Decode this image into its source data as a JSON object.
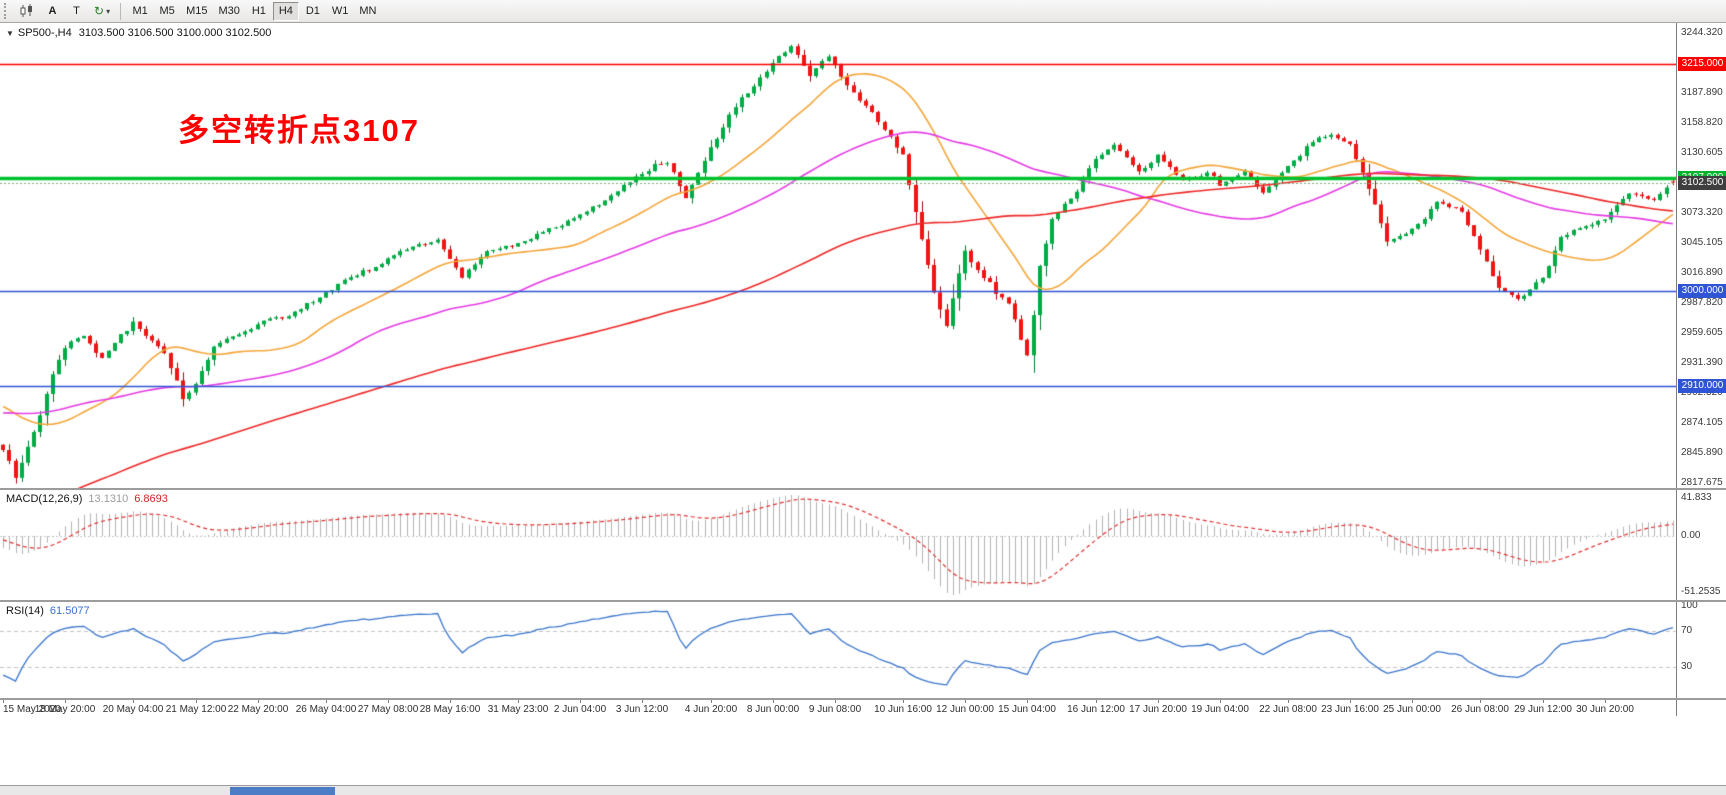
{
  "icons": {
    "refresh": "↻",
    "caret": "▾",
    "title_marker": "▼"
  },
  "toolbar": {
    "tool_a": "A",
    "tool_t": "T",
    "timeframes": [
      "M1",
      "M5",
      "M15",
      "M30",
      "H1",
      "H4",
      "D1",
      "W1",
      "MN"
    ],
    "active_timeframe": "H4"
  },
  "chart": {
    "title": {
      "symbol_period": "SP500-,H4",
      "quote": "3103.500 3106.500 3100.000 3102.500"
    },
    "annotation": {
      "text": "多空转折点3107",
      "color": "#ff0000"
    },
    "hlines": [
      {
        "price": 3215.0,
        "label": "3215.000",
        "color": "#ff0000",
        "badge_bg": "#ff0000",
        "width": 1.6,
        "style": "solid"
      },
      {
        "price": 3107.0,
        "label": "3107.000",
        "color": "#00c22e",
        "badge_bg": "#00b42c",
        "width": 3.4,
        "style": "solid"
      },
      {
        "price": 3102.5,
        "label": "3102.500",
        "color": "#7fae7f",
        "badge_bg": "#3f3f3f",
        "width": 1,
        "style": "dashed"
      },
      {
        "price": 3000.0,
        "label": "3000.000",
        "color": "#2f55d4",
        "badge_bg": "#2f55d4",
        "width": 1.6,
        "style": "solid"
      },
      {
        "price": 2910.0,
        "label": "2910.000",
        "color": "#2f55d4",
        "badge_bg": "#2f55d4",
        "width": 1.6,
        "style": "solid"
      }
    ],
    "y_ticks": [
      "3244.320",
      "3216.105",
      "3187.890",
      "3158.820",
      "3130.605",
      "3102.390",
      "3073.320",
      "3045.105",
      "3016.890",
      "2987.820",
      "2959.605",
      "2931.390",
      "2902.320",
      "2874.105",
      "2845.890",
      "2817.675"
    ],
    "x_labels": [
      {
        "t": "15 May 2020",
        "i": 0
      },
      {
        "t": "18 May 20:00",
        "i": 10
      },
      {
        "t": "20 May 04:00",
        "i": 21
      },
      {
        "t": "21 May 12:00",
        "i": 31
      },
      {
        "t": "22 May 20:00",
        "i": 41
      },
      {
        "t": "26 May 04:00",
        "i": 52
      },
      {
        "t": "27 May 08:00",
        "i": 62
      },
      {
        "t": "28 May 16:00",
        "i": 72
      },
      {
        "t": "31 May 23:00",
        "i": 83
      },
      {
        "t": "2 Jun 04:00",
        "i": 93
      },
      {
        "t": "3 Jun 12:00",
        "i": 103
      },
      {
        "t": "4 Jun 20:00",
        "i": 114
      },
      {
        "t": "8 Jun 00:00",
        "i": 124
      },
      {
        "t": "9 Jun 08:00",
        "i": 134
      },
      {
        "t": "10 Jun 16:00",
        "i": 145
      },
      {
        "t": "12 Jun 00:00",
        "i": 155
      },
      {
        "t": "15 Jun 04:00",
        "i": 165
      },
      {
        "t": "16 Jun 12:00",
        "i": 176
      },
      {
        "t": "17 Jun 20:00",
        "i": 186
      },
      {
        "t": "19 Jun 04:00",
        "i": 196
      },
      {
        "t": "22 Jun 08:00",
        "i": 207
      },
      {
        "t": "23 Jun 16:00",
        "i": 217
      },
      {
        "t": "25 Jun 00:00",
        "i": 227
      },
      {
        "t": "26 Jun 08:00",
        "i": 238
      },
      {
        "t": "29 Jun 12:00",
        "i": 248
      },
      {
        "t": "30 Jun 20:00",
        "i": 258
      }
    ]
  },
  "macd": {
    "header": "MACD(12,26,9)",
    "value_main": "13.1310",
    "value_signal": "6.8693",
    "ticks": [
      "41.833",
      "0.00",
      "-51.2535"
    ]
  },
  "rsi": {
    "header": "RSI(14)",
    "value": "61.5077",
    "ticks": [
      "100",
      "70",
      "30"
    ]
  },
  "chart_data": {
    "type": "candlestick",
    "symbol": "SP500-",
    "timeframe": "H4",
    "bars_total": 270,
    "axis": {
      "top": 3244.32,
      "bottom": 2817.675
    },
    "last_ohlc": {
      "open": 3103.5,
      "high": 3106.5,
      "low": 3100.0,
      "close": 3102.5
    },
    "history_anchors": [
      [
        0,
        2540
      ],
      [
        40,
        2650
      ],
      [
        80,
        2790
      ],
      [
        110,
        2885
      ],
      [
        138,
        2912
      ],
      [
        149,
        2850
      ]
    ],
    "close_anchors": [
      [
        0,
        2848
      ],
      [
        2,
        2823
      ],
      [
        5,
        2865
      ],
      [
        8,
        2920
      ],
      [
        10,
        2945
      ],
      [
        13,
        2958
      ],
      [
        16,
        2935
      ],
      [
        21,
        2970
      ],
      [
        26,
        2942
      ],
      [
        29,
        2898
      ],
      [
        31,
        2912
      ],
      [
        34,
        2948
      ],
      [
        38,
        2958
      ],
      [
        42,
        2972
      ],
      [
        46,
        2975
      ],
      [
        52,
        2998
      ],
      [
        56,
        3012
      ],
      [
        62,
        3030
      ],
      [
        66,
        3042
      ],
      [
        70,
        3048
      ],
      [
        74,
        3012
      ],
      [
        78,
        3036
      ],
      [
        83,
        3044
      ],
      [
        88,
        3058
      ],
      [
        93,
        3072
      ],
      [
        97,
        3086
      ],
      [
        103,
        3112
      ],
      [
        107,
        3122
      ],
      [
        110,
        3088
      ],
      [
        114,
        3135
      ],
      [
        118,
        3175
      ],
      [
        121,
        3194
      ],
      [
        124,
        3215
      ],
      [
        127,
        3232
      ],
      [
        130,
        3205
      ],
      [
        133,
        3222
      ],
      [
        136,
        3195
      ],
      [
        140,
        3168
      ],
      [
        145,
        3128
      ],
      [
        148,
        3048
      ],
      [
        150,
        2998
      ],
      [
        152,
        2968
      ],
      [
        155,
        3038
      ],
      [
        158,
        3012
      ],
      [
        162,
        2988
      ],
      [
        165,
        2938
      ],
      [
        167,
        3022
      ],
      [
        169,
        3068
      ],
      [
        173,
        3095
      ],
      [
        176,
        3124
      ],
      [
        179,
        3138
      ],
      [
        183,
        3112
      ],
      [
        186,
        3128
      ],
      [
        190,
        3105
      ],
      [
        194,
        3112
      ],
      [
        196,
        3100
      ],
      [
        200,
        3112
      ],
      [
        203,
        3092
      ],
      [
        207,
        3118
      ],
      [
        211,
        3142
      ],
      [
        214,
        3148
      ],
      [
        217,
        3138
      ],
      [
        220,
        3098
      ],
      [
        223,
        3046
      ],
      [
        227,
        3058
      ],
      [
        231,
        3084
      ],
      [
        235,
        3076
      ],
      [
        238,
        3038
      ],
      [
        241,
        3002
      ],
      [
        244,
        2992
      ],
      [
        248,
        3012
      ],
      [
        251,
        3052
      ],
      [
        254,
        3060
      ],
      [
        258,
        3068
      ],
      [
        262,
        3092
      ],
      [
        266,
        3086
      ],
      [
        269,
        3102.5
      ]
    ],
    "candle": {
      "up": "#00ad45",
      "up_border": "#047a30",
      "down": "#f01414",
      "down_border": "#a50d0d"
    },
    "ma": [
      {
        "period": 21,
        "color": "#f5a73b",
        "name": "fast-orange-ma"
      },
      {
        "period": 55,
        "color": "#e53ce5",
        "name": "mid-magenta-ma"
      },
      {
        "period": 130,
        "color": "#ef2929",
        "name": "slow-red-ma"
      }
    ],
    "macd": {
      "fast": 12,
      "slow": 26,
      "signal": 9,
      "histogram_color": "#b4b4b4",
      "signal_color": "#e03131",
      "last_main": 13.131,
      "last_signal": 6.8693,
      "shown_range": [
        -51.2535,
        41.833
      ]
    },
    "rsi": {
      "period": 14,
      "color": "#3b76cc",
      "levels": [
        70,
        30
      ],
      "last": 61.5077
    }
  }
}
